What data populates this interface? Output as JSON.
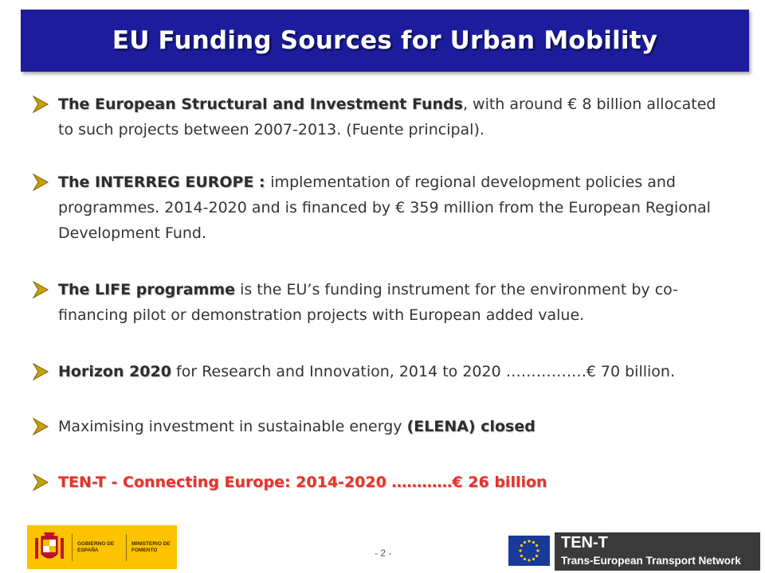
{
  "slide": {
    "title": "EU Funding Sources for Urban Mobility",
    "page_number": "- 2 -"
  },
  "bullets": [
    {
      "bold": "The European Structural and Investment Funds",
      "rest": ", with around € 8 billion allocated to such projects between 2007-2013.  (Fuente principal)."
    },
    {
      "bold": "The INTERREG EUROPE : ",
      "rest": "implementation of regional development policies and programmes. 2014-2020 and is financed by € 359 million from the European Regional Development Fund."
    },
    {
      "bold": "The LIFE programme",
      "rest": " is the EU’s funding instrument for the environment by co-financing pilot or demonstration projects with European added value."
    },
    {
      "bold": "Horizon 2020",
      "rest": " for Research and Innovation, 2014 to 2020 …………….€ 70 billion."
    },
    {
      "prefix": "Maximising investment in sustainable energy ",
      "bold": "(ELENA)  closed"
    },
    {
      "bold": "TEN-T - Connecting Europe: 2014-2020  …………€ 26 billion"
    }
  ],
  "footer": {
    "gov_left": "GOBIERNO DE ESPAÑA",
    "gov_right": "MINISTERIO DE FOMENTO",
    "tent_title": "TEN-T",
    "tent_subtitle": "Trans-European Transport Network"
  },
  "colors": {
    "title_bar": "#1c1c9c",
    "arrow_gold": "#c9a000",
    "highlight_red": "#e8332a",
    "gov_yellow": "#fdc300"
  }
}
